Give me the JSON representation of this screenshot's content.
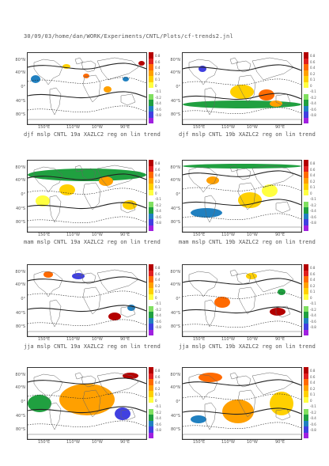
{
  "header": {
    "path": "30/09/03/home/dan/WORK/Experiments/CNTL/Plots/cf-trends2.jnl"
  },
  "lat_labels": [
    "80°N",
    "40°N",
    "0°",
    "40°S",
    "80°S"
  ],
  "lon_labels": [
    "150°E",
    "110°W",
    "10°W",
    "90°E"
  ],
  "colorbar": {
    "labels": [
      "0.8",
      "0.6",
      "0.4",
      "0.2",
      "0.1",
      "0",
      "-0.1",
      "-0.2",
      "-0.4",
      "-0.6",
      "-0.8"
    ],
    "colors": [
      "#b40000",
      "#e02020",
      "#ff6a00",
      "#ffa000",
      "#ffd000",
      "#ffff40",
      "#ffffff",
      "#80e060",
      "#20a040",
      "#2080c0",
      "#4040e0",
      "#a020e0"
    ]
  },
  "panels": [
    {
      "caption": "djf mslp CNTL 19a XAZLC2 reg on lin trend"
    },
    {
      "caption": "djf mslp CNTL 19b XAZLC2 reg on lin trend"
    },
    {
      "caption": "mam mslp CNTL 19a XAZLC2 reg on lin trend"
    },
    {
      "caption": "mam mslp CNTL 19b XAZLC2 reg on lin trend"
    },
    {
      "caption": "jja mslp CNTL 19a XAZLC2 reg on lin trend"
    },
    {
      "caption": "jja mslp CNTL 19b XAZLC2 reg on lin trend"
    },
    {
      "caption": ""
    },
    {
      "caption": ""
    }
  ]
}
